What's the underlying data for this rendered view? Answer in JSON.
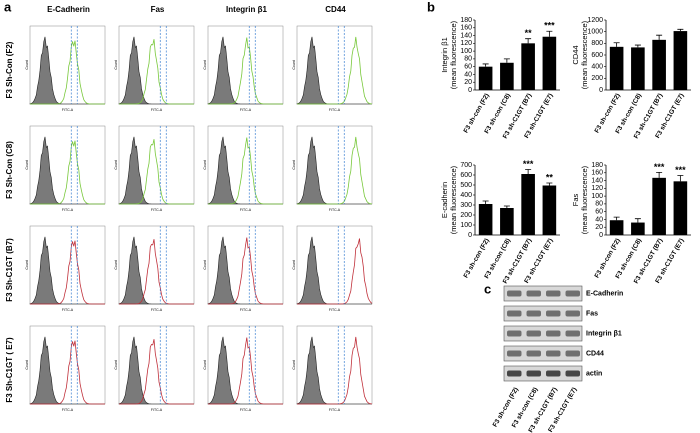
{
  "panel_labels": [
    "a",
    "b",
    "c"
  ],
  "flow": {
    "columns": [
      "E-Cadherin",
      "Fas",
      "Integrin β1",
      "CD44"
    ],
    "rows": [
      "F3 Sh-Con (F2)",
      "F3 Sh-Con (C8)",
      "F3 Sh-C1GT (B7)",
      "F3 Sh-C1GT ( E7)"
    ],
    "x_axis": "FITC-A",
    "y_axis": "Count"
  },
  "chart_data": [
    {
      "type": "bar",
      "ylabel": [
        "Integrin β1",
        "(mean fluorescence)"
      ],
      "categories": [
        "F3 sh-con (F2)",
        "F3 sh-con (C8)",
        "F3 sh-C1GT (B7)",
        "F3 sh-C1GT (E7)"
      ],
      "values": [
        60,
        70,
        120,
        137
      ],
      "errors": [
        7,
        10,
        12,
        14
      ],
      "significance": [
        null,
        null,
        "**",
        "***"
      ],
      "color": "#000000",
      "ylim": [
        0,
        180
      ],
      "yticks": [
        0,
        20,
        40,
        60,
        80,
        100,
        120,
        140,
        160,
        180
      ]
    },
    {
      "type": "bar",
      "ylabel": [
        "CD44",
        "(mean fluorescence)"
      ],
      "categories": [
        "F3 sh-con (F2)",
        "F3 sh-con (C8)",
        "F3 sh-C1GT (B7)",
        "F3 sh-C1GT (E7)"
      ],
      "values": [
        740,
        730,
        860,
        1010
      ],
      "errors": [
        70,
        40,
        80,
        30
      ],
      "significance": [
        null,
        null,
        null,
        null
      ],
      "color": "#000000",
      "ylim": [
        0,
        1200
      ],
      "yticks": [
        0,
        200,
        400,
        600,
        800,
        1000,
        1200
      ]
    },
    {
      "type": "bar",
      "ylabel": [
        "E-cadherin",
        "(mean fluorescence)"
      ],
      "categories": [
        "F3 sh-con (F2)",
        "F3 sh-con (C8)",
        "F3 sh-C1GT (B7)",
        "F3 sh-C1GT (E7)"
      ],
      "values": [
        310,
        270,
        610,
        495
      ],
      "errors": [
        30,
        20,
        45,
        25
      ],
      "significance": [
        null,
        null,
        "***",
        "**"
      ],
      "color": "#000000",
      "ylim": [
        0,
        700
      ],
      "yticks": [
        0,
        100,
        200,
        300,
        400,
        500,
        600,
        700
      ]
    },
    {
      "type": "bar",
      "ylabel": [
        "Fas",
        "(mean fluorescence)"
      ],
      "categories": [
        "F3 sh-con (F2)",
        "F3 sh-con (C8)",
        "F3 sh-C1GT (B7)",
        "F3 sh-C1GT (E7)"
      ],
      "values": [
        38,
        32,
        147,
        138
      ],
      "errors": [
        8,
        10,
        14,
        15
      ],
      "significance": [
        null,
        null,
        "***",
        "***"
      ],
      "color": "#000000",
      "ylim": [
        0,
        180
      ],
      "yticks": [
        0,
        20,
        40,
        60,
        80,
        100,
        120,
        140,
        160,
        180
      ]
    }
  ],
  "blot": {
    "bands": [
      "E-Cadherin",
      "Fas",
      "Integrin β1",
      "CD44",
      "actin"
    ],
    "lanes": [
      "F3 sh-con (F2)",
      "F3 sh-con (C8)",
      "F3 sh-C1GT (B7)",
      "F3 sh-C1GT (E7)"
    ]
  }
}
